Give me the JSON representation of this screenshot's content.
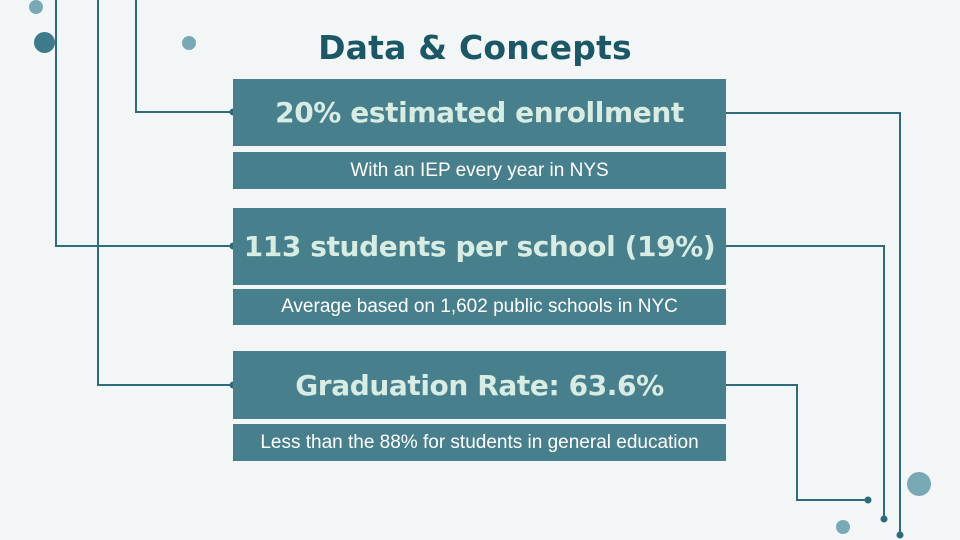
{
  "slide": {
    "title": "Data & Concepts",
    "items": [
      {
        "stat": "20% estimated enrollment",
        "description": "With an IEP every year in NYS"
      },
      {
        "stat": "113 students per school (19%)",
        "description": "Average based on 1,602 public schools in NYC"
      },
      {
        "stat": "Graduation Rate: 63.6%",
        "description": "Less than the 88% for students in general education"
      }
    ]
  },
  "colors": {
    "background": "#f2f6f7",
    "box": "#487f8d",
    "title": "#1c5766",
    "stat_text": "#d7ece2",
    "line": "#2f6b7b",
    "dot_light": "#7aa9b6",
    "dot_dark": "#3d7b8b"
  }
}
